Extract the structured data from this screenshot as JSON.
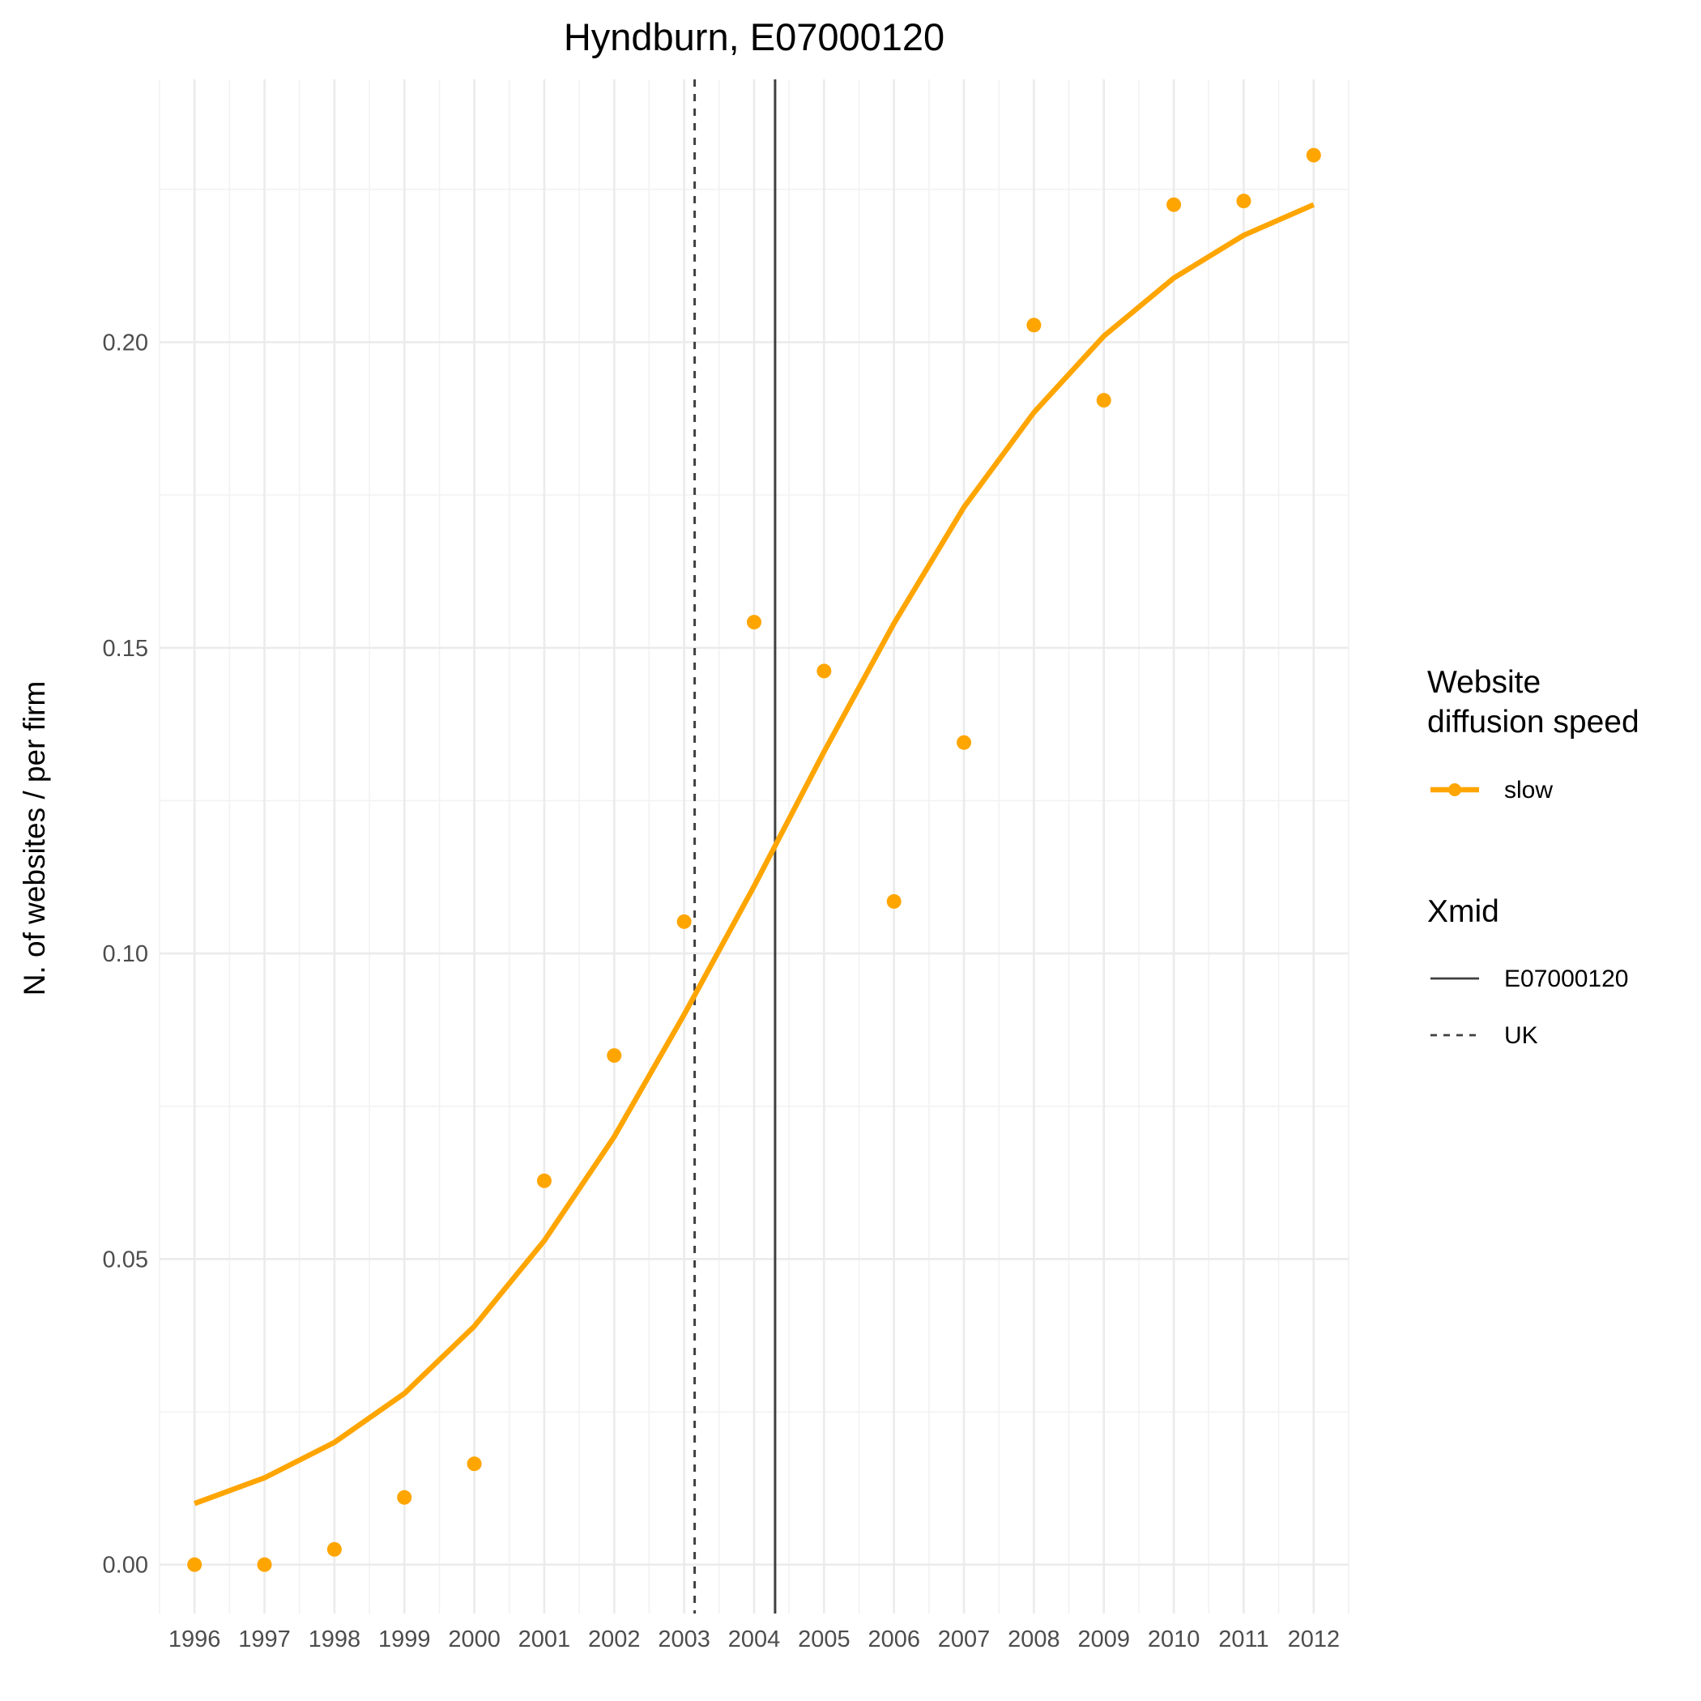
{
  "chart_data": {
    "type": "line",
    "title": "Hyndburn, E07000120",
    "xlabel": "",
    "ylabel": "N. of websites / per firm",
    "x_ticks": [
      "1996",
      "1997",
      "1998",
      "1999",
      "2000",
      "2001",
      "2002",
      "2003",
      "2004",
      "2005",
      "2006",
      "2007",
      "2008",
      "2009",
      "2010",
      "2011",
      "2012"
    ],
    "y_ticks": [
      "0.00",
      "0.05",
      "0.10",
      "0.15",
      "0.20"
    ],
    "xlim": [
      1995.5,
      2012.5
    ],
    "ylim": [
      -0.008,
      0.243
    ],
    "grid": true,
    "legend_position": "right",
    "colors": {
      "slow": "#FFA500",
      "vline": "#404040"
    },
    "series": [
      {
        "name": "slow",
        "kind": "points",
        "x": [
          1996,
          1997,
          1998,
          1999,
          2000,
          2001,
          2002,
          2003,
          2004,
          2005,
          2006,
          2007,
          2008,
          2009,
          2010,
          2011,
          2012
        ],
        "y": [
          0.0,
          0.0,
          0.0025,
          0.011,
          0.0165,
          0.0628,
          0.0833,
          0.1052,
          0.1542,
          0.1462,
          0.1085,
          0.1345,
          0.2028,
          0.1905,
          0.2225,
          0.2231,
          0.2306
        ]
      },
      {
        "name": "slow",
        "kind": "fitted-line",
        "x": [
          1996,
          1997,
          1998,
          1999,
          2000,
          2001,
          2002,
          2003,
          2004,
          2005,
          2006,
          2007,
          2008,
          2009,
          2010,
          2011,
          2012
        ],
        "y": [
          0.01,
          0.0142,
          0.02,
          0.028,
          0.039,
          0.053,
          0.07,
          0.09,
          0.111,
          0.133,
          0.154,
          0.173,
          0.1885,
          0.201,
          0.2105,
          0.2175,
          0.2225
        ]
      }
    ],
    "vlines": [
      {
        "name": "E07000120",
        "x": 2004.3,
        "style": "solid"
      },
      {
        "name": "UK",
        "x": 2003.15,
        "style": "dashed"
      }
    ],
    "legend": {
      "speed_title_line1": "Website",
      "speed_title_line2": "diffusion speed",
      "speed_item": "slow",
      "xmid_title": "Xmid",
      "xmid_items": [
        "E07000120",
        "UK"
      ]
    }
  }
}
